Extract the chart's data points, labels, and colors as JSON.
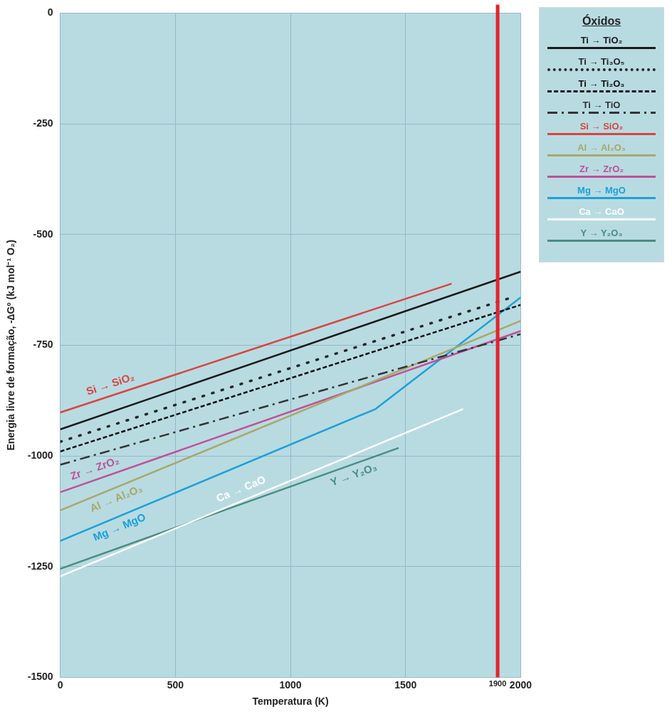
{
  "chart_data": {
    "type": "line",
    "xlabel": "Temperatura (K)",
    "ylabel": "Energia livre de formação, -∆Gº (kJ mol⁻¹ O₂)",
    "legend_title": "Óxidos",
    "xlim": [
      0,
      2000
    ],
    "xticks": [
      0,
      500,
      1000,
      1500,
      1900,
      2000
    ],
    "ylim": [
      -1500,
      0
    ],
    "yticks": [
      0,
      -250,
      -500,
      -750,
      -1000,
      -1250,
      -1500
    ],
    "grid": true,
    "legend": "right",
    "marker": "none",
    "series": [
      {
        "name": "Ti → TiO₂",
        "color": "#1a1a1a",
        "line_style": "solid",
        "x": [
          0,
          2000
        ],
        "values": [
          -940,
          -584
        ]
      },
      {
        "name": "Ti → Ti₃O₅",
        "color": "#262626",
        "line_style": "dotted",
        "x": [
          0,
          1950
        ],
        "values": [
          -968,
          -644
        ]
      },
      {
        "name": "Ti → Ti₂O₃",
        "color": "#0d0d0d",
        "line_style": "dashed",
        "x": [
          0,
          2000
        ],
        "values": [
          -990,
          -659
        ]
      },
      {
        "name": "Ti → TiO",
        "color": "#333333",
        "line_style": "dashdot",
        "x": [
          0,
          2000
        ],
        "values": [
          -1020,
          -725
        ]
      },
      {
        "name": "Si → SiO₂",
        "color": "#d9443f",
        "line_style": "solid",
        "x": [
          0,
          1700
        ],
        "values": [
          -902,
          -611
        ]
      },
      {
        "name": "Al → Al₂O₃",
        "color": "#a8a86a",
        "line_style": "solid",
        "x": [
          0,
          2000
        ],
        "values": [
          -1123,
          -695
        ]
      },
      {
        "name": "Zr → ZrO₂",
        "color": "#c04f9a",
        "line_style": "solid",
        "x": [
          0,
          2000
        ],
        "values": [
          -1082,
          -718
        ]
      },
      {
        "name": "Mg → MgO",
        "color": "#1ca0d8",
        "line_style": "solid",
        "x": [
          0,
          1370,
          2000
        ],
        "values": [
          -1192,
          -894,
          -642
        ]
      },
      {
        "name": "Ca → CaO",
        "color": "#ffffff",
        "line_style": "solid",
        "x": [
          0,
          1750
        ],
        "values": [
          -1272,
          -894
        ]
      },
      {
        "name": "Y → Y₂O₃",
        "color": "#4a8c80",
        "line_style": "solid",
        "x": [
          0,
          1470
        ],
        "values": [
          -1255,
          -982
        ]
      }
    ],
    "ref_lines": [
      {
        "axis": "x",
        "value": 1900,
        "color": "#e3242b"
      }
    ],
    "annotations": [
      {
        "text": "Si → SiO₂",
        "x": 233,
        "y": -862
      },
      {
        "text": "Zr → ZrO₂",
        "x": 166,
        "y": -1052
      },
      {
        "text": "Al → Al₂O₃",
        "x": 226,
        "y": -1075
      },
      {
        "text": "Mg → MgO",
        "x": 240,
        "y": -1140
      },
      {
        "text": "Ca → CaO",
        "x": 804,
        "y": -1098
      },
      {
        "text": "Y → Y₂O₃",
        "x": 1260,
        "y": -1021
      }
    ]
  }
}
